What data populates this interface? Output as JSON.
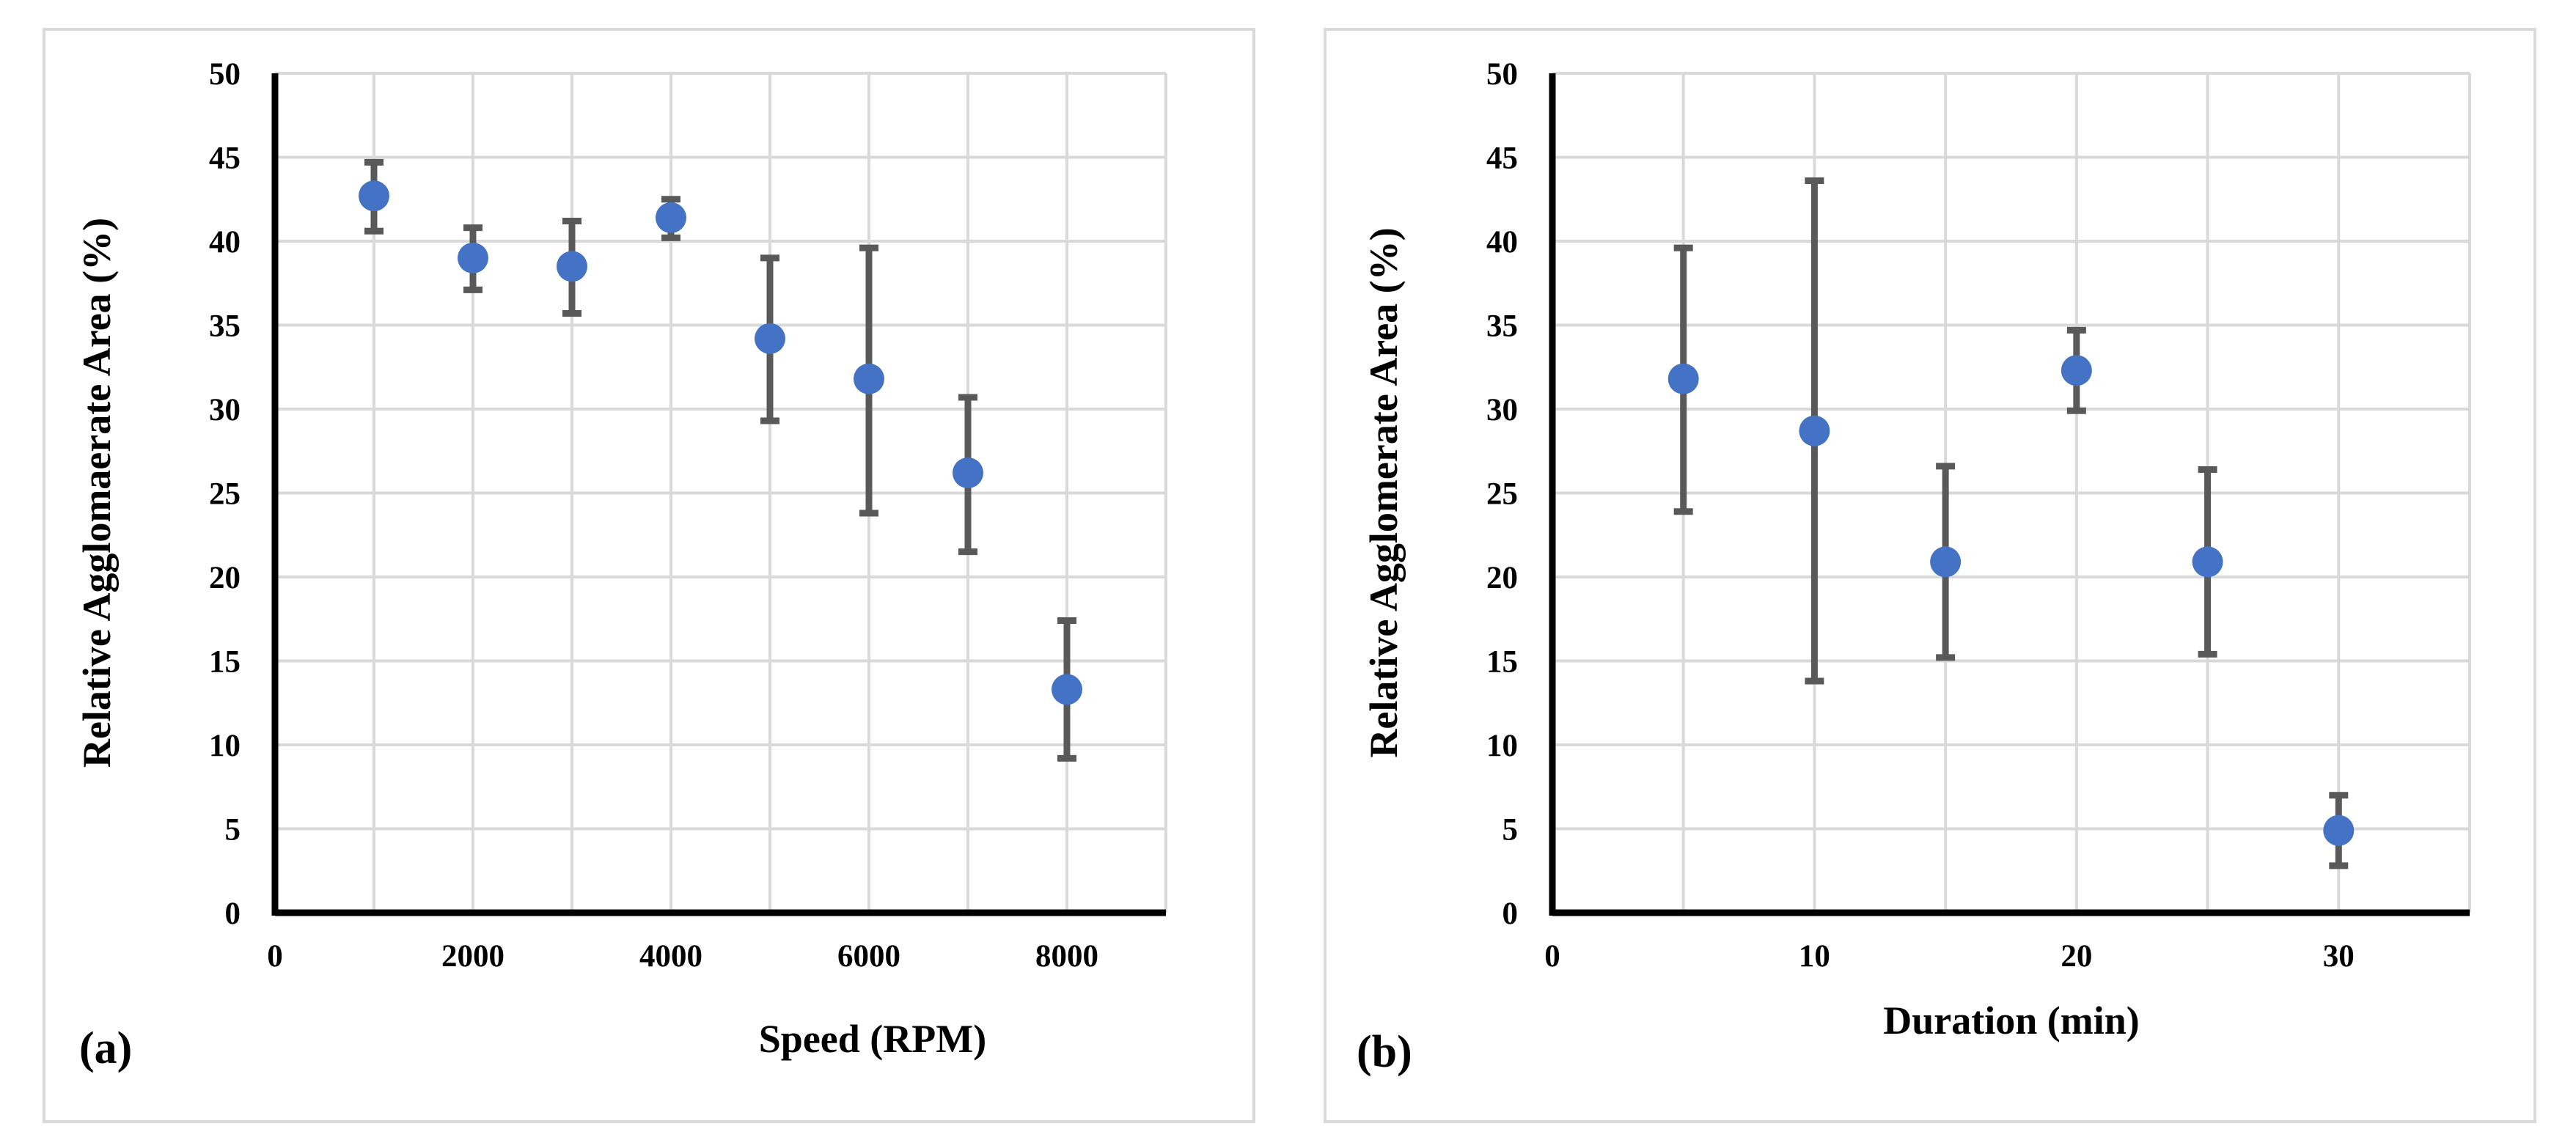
{
  "chart_data": [
    {
      "type": "scatter",
      "panel_label": "(a)",
      "title": "",
      "xlabel": "Speed (RPM)",
      "ylabel": "Relative Agglomaerate Area (%)",
      "xlim": [
        0,
        9000
      ],
      "ylim": [
        0,
        50
      ],
      "xticks": [
        0,
        2000,
        4000,
        6000,
        8000
      ],
      "yticks": [
        0,
        5,
        10,
        15,
        20,
        25,
        30,
        35,
        40,
        45,
        50
      ],
      "grid": true,
      "legend": "none",
      "series": [
        {
          "name": "Relative Agglomerate Area",
          "x": [
            1000,
            2000,
            3000,
            4000,
            5000,
            6000,
            7000,
            8000
          ],
          "y": [
            42.7,
            39.0,
            38.5,
            41.4,
            34.2,
            31.8,
            26.2,
            13.3
          ],
          "error_upper": [
            44.7,
            40.8,
            41.2,
            42.5,
            39.0,
            39.6,
            30.7,
            17.4
          ],
          "error_lower": [
            40.6,
            37.1,
            35.7,
            40.2,
            29.3,
            23.8,
            21.5,
            9.2
          ]
        }
      ]
    },
    {
      "type": "scatter",
      "panel_label": "(b)",
      "title": "",
      "xlabel": "Duration (min)",
      "ylabel": "Relative Agglomerate Area (%)",
      "xlim": [
        0,
        35
      ],
      "ylim": [
        0,
        50
      ],
      "xticks": [
        0,
        10,
        20,
        30
      ],
      "yticks": [
        0,
        5,
        10,
        15,
        20,
        25,
        30,
        35,
        40,
        45,
        50
      ],
      "grid": true,
      "legend": "none",
      "series": [
        {
          "name": "Relative Agglomerate Area",
          "x": [
            5,
            10,
            15,
            20,
            25,
            30
          ],
          "y": [
            31.8,
            28.7,
            20.9,
            32.3,
            20.9,
            4.9
          ],
          "error_upper": [
            39.6,
            43.6,
            26.6,
            34.7,
            26.4,
            7.0
          ],
          "error_lower": [
            23.9,
            13.8,
            15.2,
            29.9,
            15.4,
            2.8
          ]
        }
      ]
    }
  ],
  "colors": {
    "marker": "#4472C4",
    "error_bar": "#595959",
    "grid": "#D9D9D9",
    "axis": "#000000",
    "frame": "#D9D9D9"
  }
}
